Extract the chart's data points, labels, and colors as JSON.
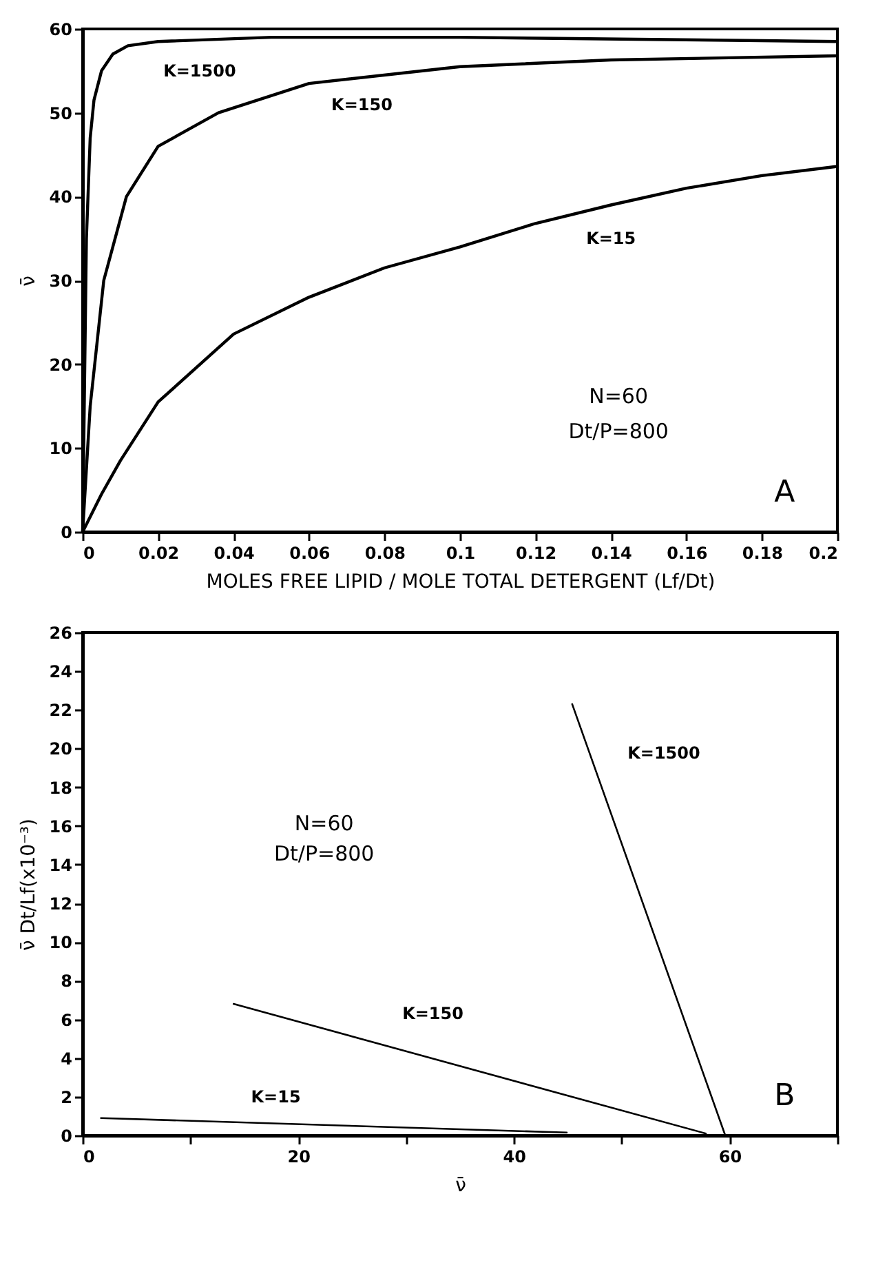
{
  "chart_data": [
    {
      "type": "line",
      "xlabel": "MOLES FREE LIPID / MOLE TOTAL DETERGENT   (Lf/Dt)",
      "ylabel": "ν̄",
      "xlim": [
        0,
        0.2
      ],
      "ylim": [
        0,
        60
      ],
      "xticks": [
        0,
        0.02,
        0.04,
        0.06,
        0.08,
        0.1,
        0.12,
        0.14,
        0.16,
        0.18,
        0.2
      ],
      "yticks": [
        0,
        10,
        20,
        30,
        40,
        50,
        60
      ],
      "grid": false,
      "marker": "none",
      "line_style": "solid",
      "series": [
        {
          "name": "K=1500",
          "color": "#000000",
          "x": [
            0,
            0.001,
            0.002,
            0.003,
            0.005,
            0.008,
            0.012,
            0.02,
            0.05,
            0.1,
            0.2
          ],
          "values": [
            0,
            35,
            47,
            51.5,
            55,
            57,
            58,
            58.5,
            59,
            59,
            58.5
          ]
        },
        {
          "name": "K=150",
          "color": "#000000",
          "x": [
            0,
            0.002,
            0.0056,
            0.0116,
            0.02,
            0.036,
            0.06,
            0.1,
            0.14,
            0.2
          ],
          "values": [
            0,
            15,
            30,
            40,
            46,
            50,
            53.5,
            55.5,
            56.3,
            56.8
          ]
        },
        {
          "name": "K=15",
          "color": "#000000",
          "x": [
            0,
            0.005,
            0.01,
            0.02,
            0.04,
            0.06,
            0.08,
            0.1,
            0.12,
            0.14,
            0.16,
            0.18,
            0.2
          ],
          "values": [
            0,
            4.5,
            8.5,
            15.5,
            23.6,
            28,
            31.5,
            34,
            36.8,
            39,
            41,
            42.5,
            43.6
          ]
        }
      ],
      "annotations": [
        "N=60",
        "Dt/P=800",
        "A"
      ]
    },
    {
      "type": "line",
      "xlabel": "ν̄",
      "ylabel": "ν̄ Dt/Lf(x10⁻³)",
      "xlim": [
        0,
        70
      ],
      "ylim": [
        0,
        26
      ],
      "xticks": [
        0,
        {
          "value": 10,
          "label": null
        },
        20,
        {
          "value": 30,
          "label": null
        },
        40,
        {
          "value": 50,
          "label": null
        },
        60,
        {
          "value": 70,
          "label": null
        }
      ],
      "yticks": [
        0,
        2,
        4,
        6,
        8,
        10,
        12,
        14,
        16,
        18,
        20,
        22,
        24,
        26
      ],
      "grid": false,
      "marker": "none",
      "line_style": "solid",
      "series": [
        {
          "name": "K=15",
          "color": "#000000",
          "x": [
            1.7,
            44.9
          ],
          "values": [
            0.9,
            0.15
          ]
        },
        {
          "name": "K=150",
          "color": "#000000",
          "x": [
            14,
            57.8
          ],
          "values": [
            6.8,
            0.1
          ]
        },
        {
          "name": "K=1500",
          "color": "#000000",
          "x": [
            45.4,
            59.6
          ],
          "values": [
            22.3,
            0
          ]
        }
      ],
      "annotations": [
        "N=60",
        "Dt/P=800",
        "B"
      ]
    }
  ]
}
